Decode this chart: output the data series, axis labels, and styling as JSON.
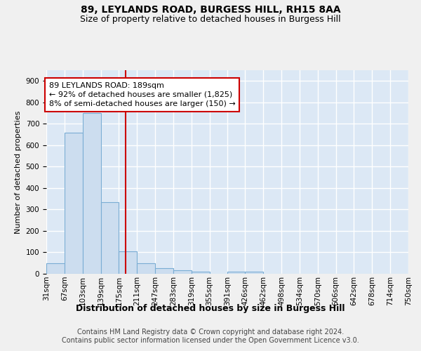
{
  "title": "89, LEYLANDS ROAD, BURGESS HILL, RH15 8AA",
  "subtitle": "Size of property relative to detached houses in Burgess Hill",
  "xlabel": "Distribution of detached houses by size in Burgess Hill",
  "ylabel": "Number of detached properties",
  "footnote": "Contains HM Land Registry data © Crown copyright and database right 2024.\nContains public sector information licensed under the Open Government Licence v3.0.",
  "bin_edges": [
    31,
    67,
    103,
    139,
    175,
    211,
    247,
    283,
    319,
    355,
    391,
    426,
    462,
    498,
    534,
    570,
    606,
    642,
    678,
    714,
    750
  ],
  "bar_heights": [
    50,
    660,
    750,
    335,
    105,
    50,
    25,
    15,
    10,
    0,
    10,
    10,
    0,
    0,
    0,
    0,
    0,
    0,
    0,
    0
  ],
  "bar_color": "#ccddef",
  "bar_edge_color": "#7aadd4",
  "property_size": 189,
  "vline_color": "#cc0000",
  "annotation_line1": "89 LEYLANDS ROAD: 189sqm",
  "annotation_line2": "← 92% of detached houses are smaller (1,825)",
  "annotation_line3": "8% of semi-detached houses are larger (150) →",
  "annotation_box_color": "#ffffff",
  "annotation_box_edge_color": "#cc0000",
  "ylim": [
    0,
    950
  ],
  "yticks": [
    0,
    100,
    200,
    300,
    400,
    500,
    600,
    700,
    800,
    900
  ],
  "bg_color": "#dce8f5",
  "grid_color": "#ffffff",
  "fig_bg_color": "#f0f0f0",
  "title_fontsize": 10,
  "subtitle_fontsize": 9,
  "xlabel_fontsize": 9,
  "ylabel_fontsize": 8,
  "tick_fontsize": 7.5,
  "annotation_fontsize": 8,
  "footnote_fontsize": 7
}
